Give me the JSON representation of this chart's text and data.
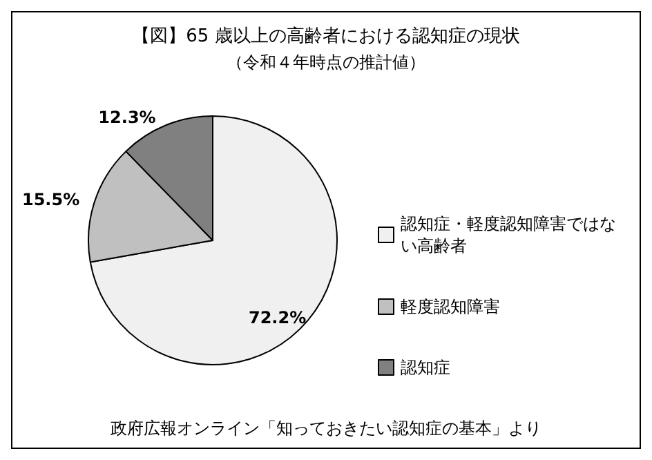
{
  "chart_data": {
    "type": "pie",
    "title": "【図】65 歳以上の高齢者における認知症の現状",
    "subtitle": "（令和４年時点の推計値）",
    "categories": [
      "認知症・軽度認知障害ではない高齢者",
      "軽度認知障害",
      "認知症"
    ],
    "values": [
      72.2,
      15.5,
      12.3
    ],
    "colors": [
      "#f0f0f0",
      "#c0c0c0",
      "#808080"
    ],
    "value_labels": [
      "72.2%",
      "15.5%",
      "12.3%"
    ],
    "legend": "right",
    "annotations": [
      "政府広報オンライン「知っておきたい認知症の基本」より"
    ]
  }
}
